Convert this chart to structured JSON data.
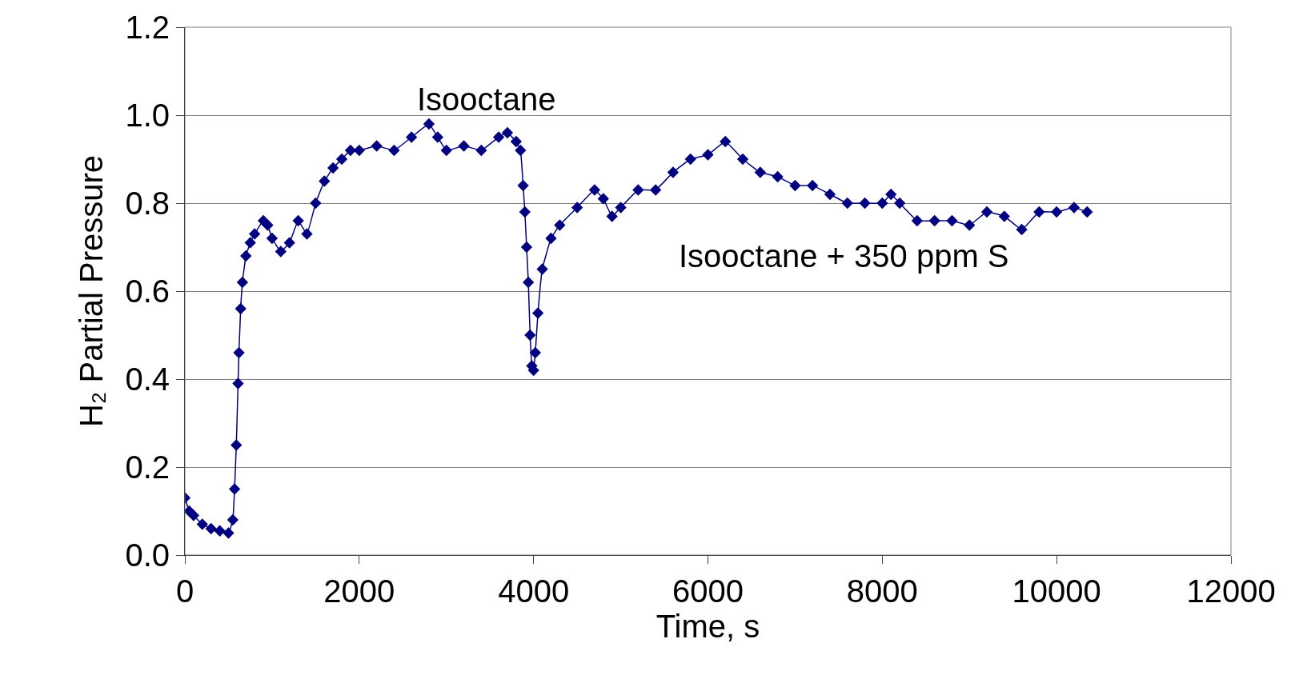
{
  "chart_data": {
    "type": "line",
    "xlabel": "Time, s",
    "ylabel": "H₂ Partial Pressure",
    "xlim": [
      0,
      12000
    ],
    "xticks": [
      0,
      2000,
      4000,
      6000,
      8000,
      10000,
      12000
    ],
    "ylim": [
      0,
      1.2
    ],
    "yticks": [
      {
        "value": 0,
        "label": "0.0"
      },
      {
        "value": 0.2,
        "label": "0.2"
      },
      {
        "value": 0.4,
        "label": "0.4"
      },
      {
        "value": 0.6,
        "label": "0.6"
      },
      {
        "value": 0.8,
        "label": "0.8"
      },
      {
        "value": 1.0,
        "label": "1.0"
      },
      {
        "value": 1.2,
        "label": "1.2"
      }
    ],
    "grid": "y",
    "marker": "diamond",
    "line_style": "solid",
    "legend": false,
    "annotations": [
      "Isooctane",
      "Isooctane + 350 ppm S"
    ],
    "x": [
      0,
      50,
      100,
      200,
      300,
      400,
      500,
      550,
      570,
      590,
      610,
      620,
      640,
      660,
      700,
      750,
      800,
      900,
      950,
      1000,
      1100,
      1200,
      1300,
      1400,
      1500,
      1600,
      1700,
      1800,
      1900,
      2000,
      2200,
      2400,
      2600,
      2800,
      2900,
      3000,
      3200,
      3400,
      3600,
      3700,
      3800,
      3850,
      3880,
      3900,
      3920,
      3940,
      3960,
      3980,
      4000,
      4020,
      4050,
      4100,
      4200,
      4300,
      4500,
      4700,
      4800,
      4900,
      5000,
      5200,
      5400,
      5600,
      5800,
      6000,
      6200,
      6400,
      6600,
      6800,
      7000,
      7200,
      7400,
      7600,
      7800,
      8000,
      8100,
      8200,
      8400,
      8600,
      8800,
      9000,
      9200,
      9400,
      9600,
      9800,
      10000,
      10200,
      10350
    ],
    "series": [
      {
        "color": "#000080",
        "values": [
          0.13,
          0.1,
          0.09,
          0.07,
          0.06,
          0.055,
          0.05,
          0.08,
          0.15,
          0.25,
          0.39,
          0.46,
          0.56,
          0.62,
          0.68,
          0.71,
          0.73,
          0.76,
          0.75,
          0.72,
          0.69,
          0.71,
          0.76,
          0.73,
          0.8,
          0.85,
          0.88,
          0.9,
          0.92,
          0.92,
          0.93,
          0.92,
          0.95,
          0.98,
          0.95,
          0.92,
          0.93,
          0.92,
          0.95,
          0.96,
          0.94,
          0.92,
          0.84,
          0.78,
          0.7,
          0.62,
          0.5,
          0.43,
          0.42,
          0.46,
          0.55,
          0.65,
          0.72,
          0.75,
          0.79,
          0.83,
          0.81,
          0.77,
          0.79,
          0.83,
          0.83,
          0.87,
          0.9,
          0.91,
          0.94,
          0.9,
          0.87,
          0.86,
          0.84,
          0.84,
          0.82,
          0.8,
          0.8,
          0.8,
          0.82,
          0.8,
          0.76,
          0.76,
          0.76,
          0.75,
          0.78,
          0.77,
          0.74,
          0.78,
          0.78,
          0.79,
          0.78
        ]
      }
    ]
  }
}
